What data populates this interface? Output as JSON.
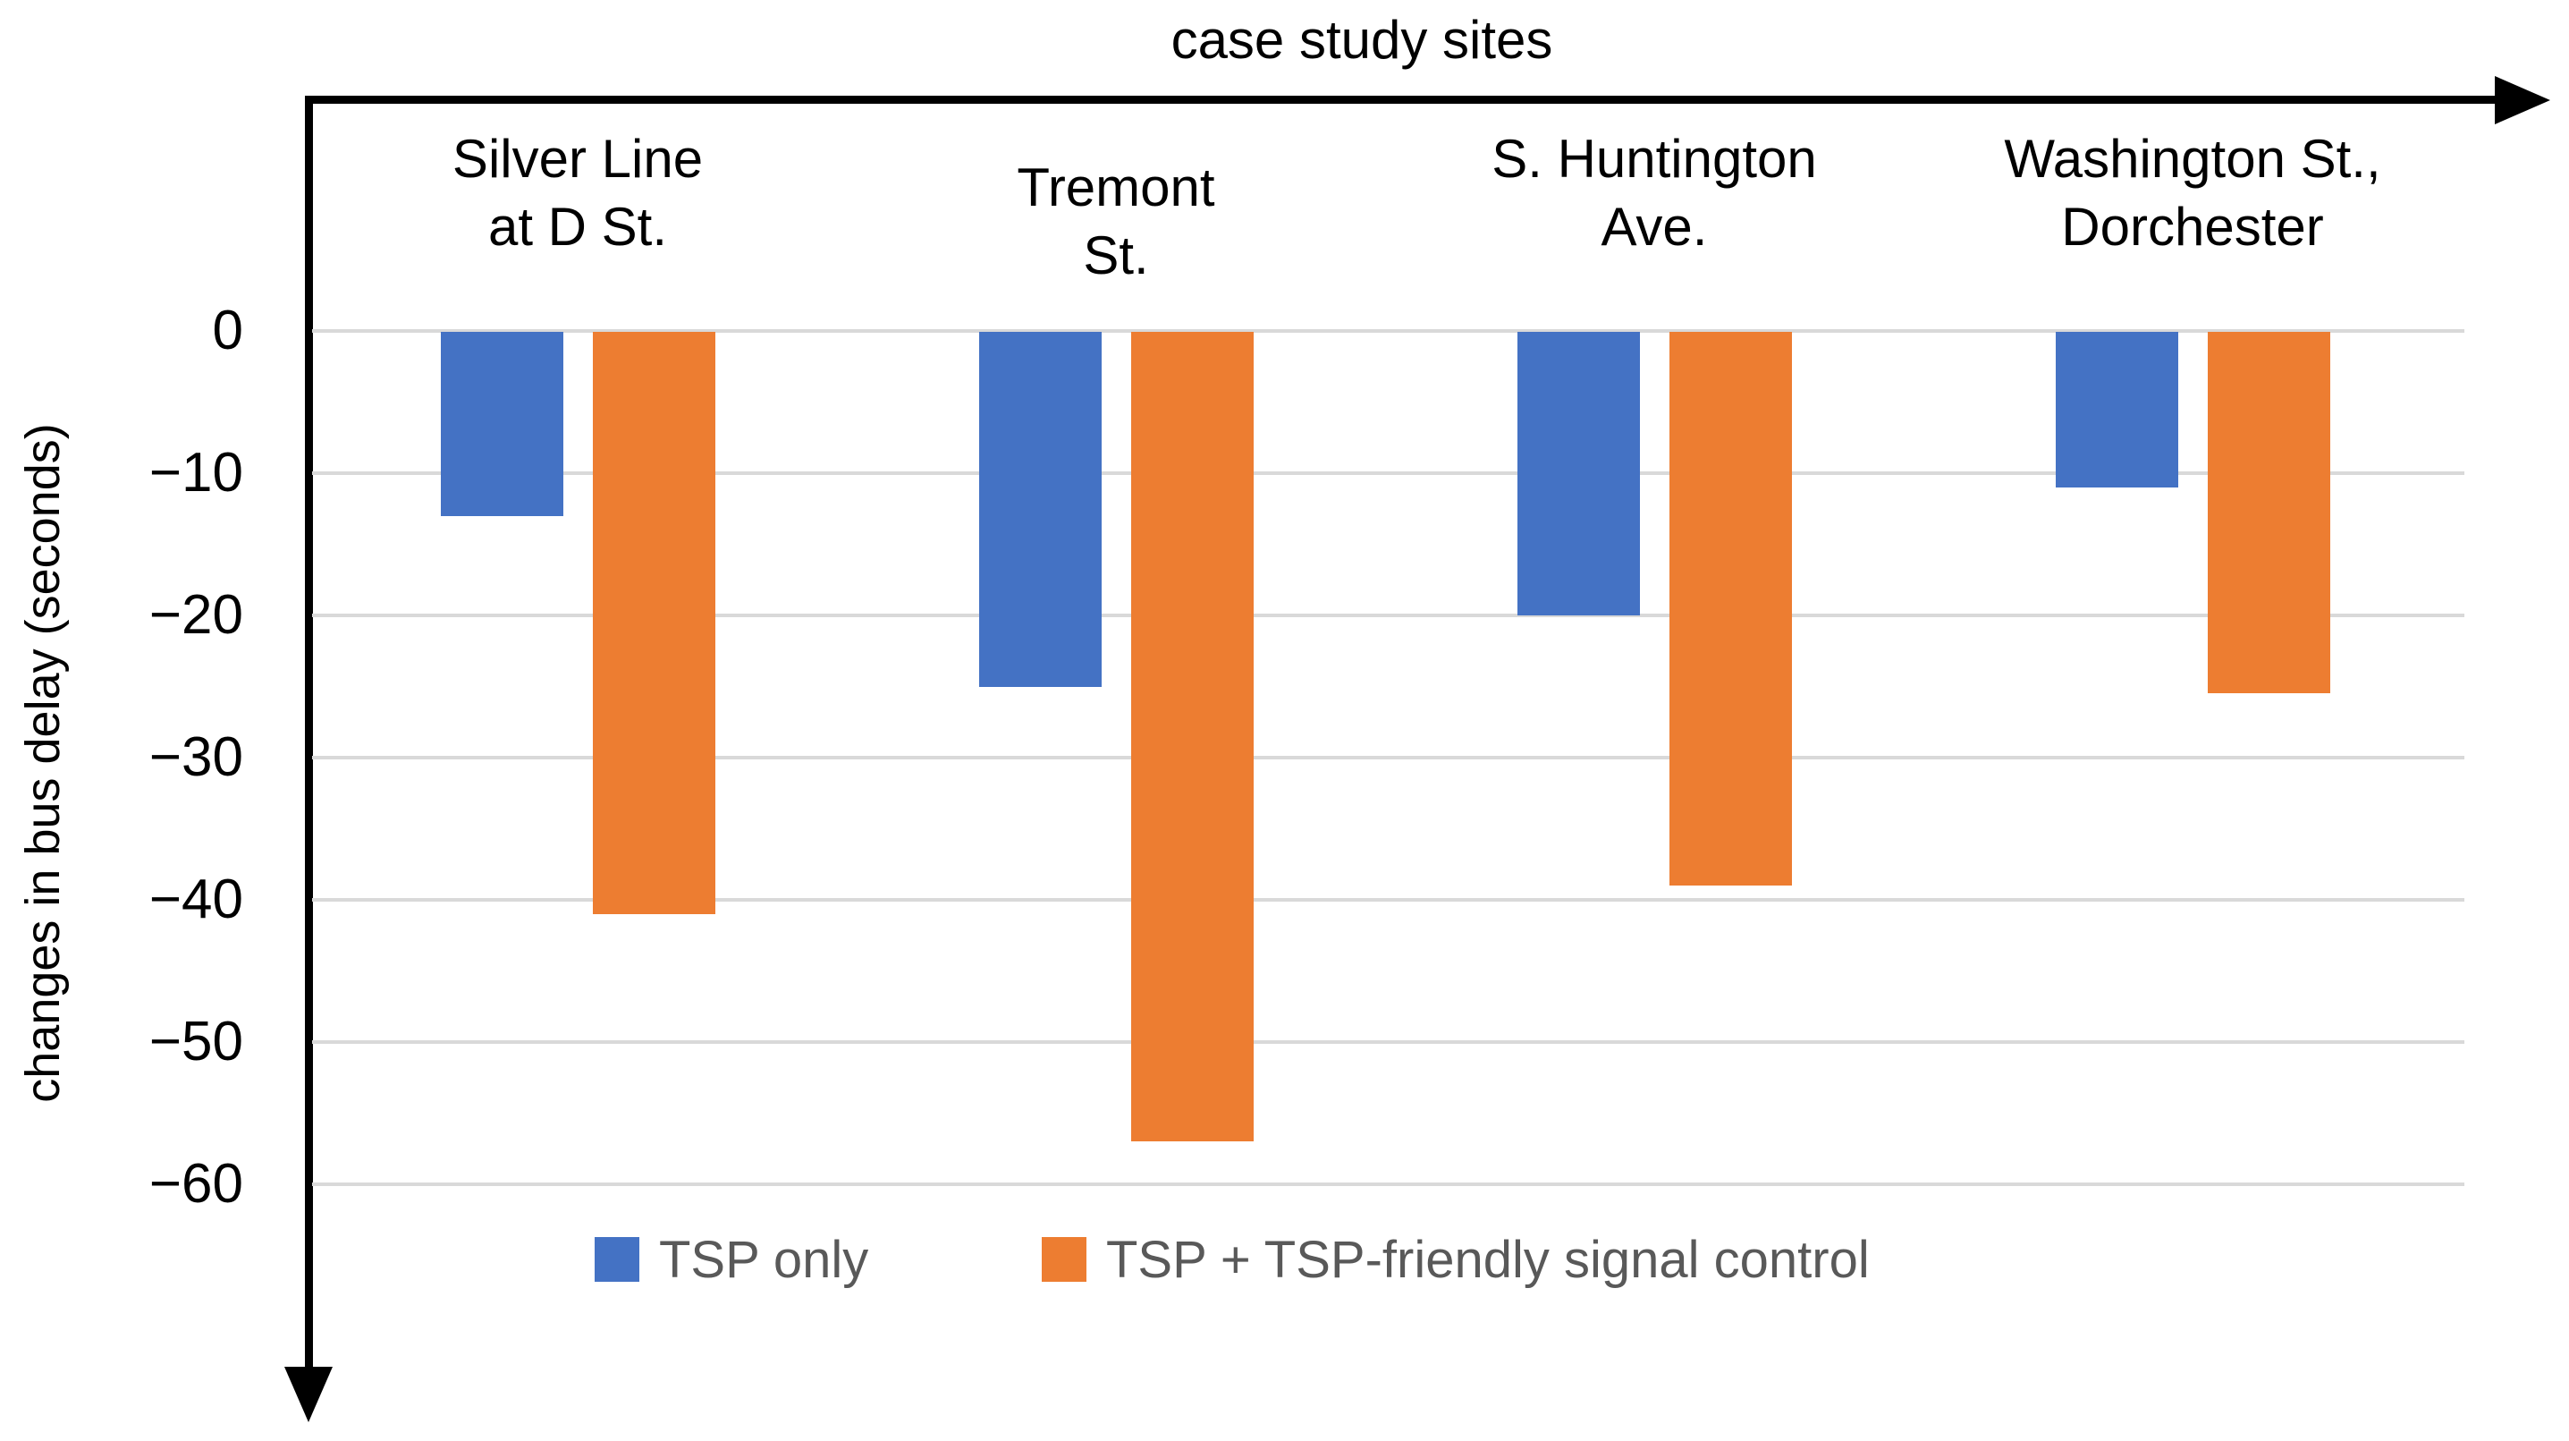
{
  "chart_data": {
    "type": "bar",
    "title": "case study sites",
    "ylabel": "changes in bus delay (seconds)",
    "categories": [
      {
        "lines": [
          "Silver Line",
          "at D St."
        ]
      },
      {
        "lines": [
          "Tremont",
          "St."
        ]
      },
      {
        "lines": [
          "S. Huntington",
          "Ave."
        ]
      },
      {
        "lines": [
          "Washington St.,",
          "Dorchester"
        ]
      }
    ],
    "series": [
      {
        "name": "TSP only",
        "color": "#4472C4",
        "values": [
          -13,
          -25,
          -20,
          -11
        ]
      },
      {
        "name": "TSP + TSP-friendly signal control",
        "color": "#ED7D31",
        "values": [
          -41,
          -57,
          -39,
          -25.5
        ]
      }
    ],
    "yticks": [
      {
        "value": 0,
        "label": "0"
      },
      {
        "value": -10,
        "label": "−10"
      },
      {
        "value": -20,
        "label": "−20"
      },
      {
        "value": -30,
        "label": "−30"
      },
      {
        "value": -40,
        "label": "−40"
      },
      {
        "value": -50,
        "label": "−50"
      },
      {
        "value": -60,
        "label": "−60"
      }
    ],
    "ylim": [
      -66,
      0
    ],
    "grid": true,
    "gridline_color": "#D9D9D9",
    "axis_color": "#000000",
    "legend_position": "bottom",
    "legend_text_color": "#595959"
  }
}
